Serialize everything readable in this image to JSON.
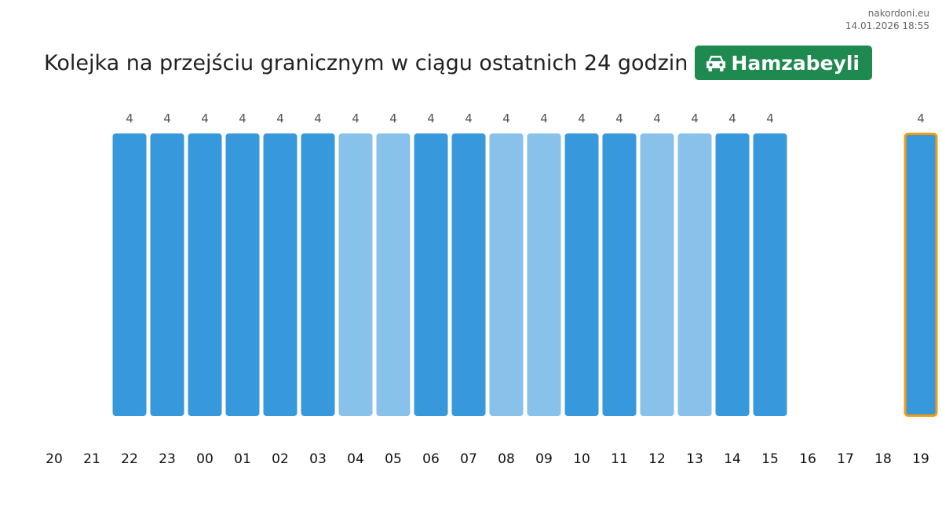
{
  "site": "nakordoni.eu",
  "timestamp": "14.01.2026 18:55",
  "title": "Kolejka na przejściu granicznym w ciągu ostatnich 24 godzin",
  "crossing": {
    "name": "Hamzabeyli",
    "icon": "car-icon",
    "color": "#1e8a4f"
  },
  "colors": {
    "dark_bar": "#3898dc",
    "light_bar": "#88c1e9",
    "current_outline": "#f39c12"
  },
  "chart_data": {
    "type": "bar",
    "title": "Kolejka na przejściu granicznym w ciągu ostatnich 24 godzin",
    "xlabel": "",
    "ylabel": "",
    "grid": false,
    "categories": [
      "20",
      "21",
      "22",
      "23",
      "00",
      "01",
      "02",
      "03",
      "04",
      "05",
      "06",
      "07",
      "08",
      "09",
      "10",
      "11",
      "12",
      "13",
      "14",
      "15",
      "16",
      "17",
      "18",
      "19"
    ],
    "values": [
      null,
      null,
      4,
      4,
      4,
      4,
      4,
      4,
      4,
      4,
      4,
      4,
      4,
      4,
      4,
      4,
      4,
      4,
      4,
      4,
      null,
      null,
      null,
      4
    ],
    "shade": [
      null,
      null,
      "dark",
      "dark",
      "dark",
      "dark",
      "dark",
      "dark",
      "light",
      "light",
      "dark",
      "dark",
      "light",
      "light",
      "dark",
      "dark",
      "light",
      "light",
      "dark",
      "dark",
      null,
      null,
      null,
      "dark"
    ],
    "highlighted_category": "19",
    "ylim": [
      0,
      4
    ]
  }
}
